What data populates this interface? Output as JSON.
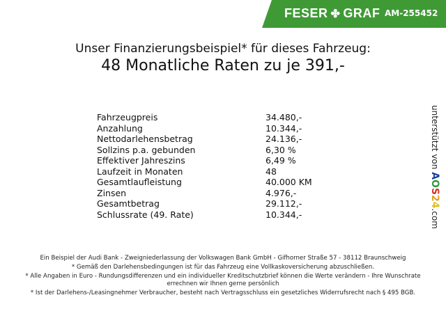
{
  "header": {
    "brand_left": "FESER",
    "brand_right": "GRAF",
    "vehicle_code": "AM-255452",
    "brand_color": "#3f9a36"
  },
  "title": {
    "line1": "Unser Finanzierungsbeispiel* für dieses Fahrzeug:",
    "line2": "48 Monatliche Raten zu je 391,-"
  },
  "rows": [
    {
      "label": "Fahrzeugpreis",
      "value": "34.480,-"
    },
    {
      "label": "Anzahlung",
      "value": "10.344,-"
    },
    {
      "label": "Nettodarlehensbetrag",
      "value": "24.136,-"
    },
    {
      "label": "Sollzins p.a. gebunden",
      "value": "6,30 %"
    },
    {
      "label": "Effektiver Jahreszins",
      "value": "6,49 %"
    },
    {
      "label": "Laufzeit in Monaten",
      "value": "48"
    },
    {
      "label": "Gesamtlaufleistung",
      "value": "40.000 KM"
    },
    {
      "label": "Zinsen",
      "value": "4.976,-"
    },
    {
      "label": "Gesamtbetrag",
      "value": "29.112,-"
    },
    {
      "label": "Schlussrate (49. Rate)",
      "value": "10.344,-"
    }
  ],
  "sidebar": {
    "supported_by": "unterstützt von",
    "logo": [
      "A",
      "O",
      "S",
      "2",
      "4"
    ],
    "logo_colors": [
      "#1a3f9a",
      "#2e9a3a",
      "#d0302a",
      "#e0a020",
      "#e0c020"
    ],
    "domain": ".com"
  },
  "footer": [
    "Ein Beispiel der Audi Bank - Zweigniederlassung der Volkswagen Bank GmbH - Gifhorner Straße 57 - 38112 Braunschweig",
    "* Gemäß den Darlehensbedingungen ist für das Fahrzeug eine Vollkaskoversicherung abzuschließen.",
    "* Alle Angaben in Euro - Rundungsdifferenzen und ein individueller Kreditschutzbrief können die Werte verändern - Ihre Wunschrate errechnen wir Ihnen gerne persönlich",
    "* Ist der Darlehens-/Leasingnehmer Verbraucher, besteht nach Vertragsschluss ein gesetzliches Widerrufsrecht nach § 495 BGB."
  ]
}
